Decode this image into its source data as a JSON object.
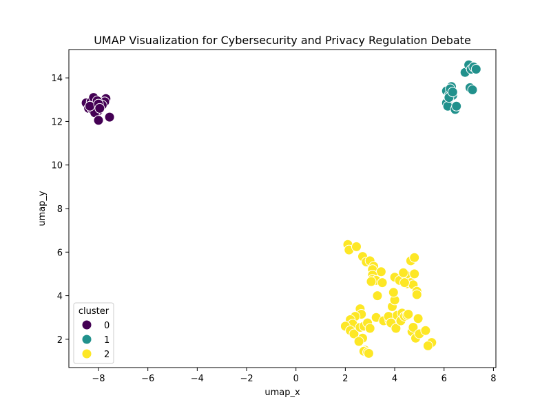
{
  "chart_data": {
    "type": "scatter",
    "title": "UMAP Visualization for Cybersecurity and Privacy Regulation Debate",
    "xlabel": "umap_x",
    "ylabel": "umap_y",
    "xlim": [
      -9.2,
      8.1
    ],
    "ylim": [
      0.7,
      15.3
    ],
    "xticks": [
      -8,
      -6,
      -4,
      -2,
      0,
      2,
      4,
      6,
      8
    ],
    "yticks": [
      2,
      4,
      6,
      8,
      10,
      12,
      14
    ],
    "grid": false,
    "legend": {
      "title": "cluster",
      "placement": "bottom-left"
    },
    "series": [
      {
        "name": "0",
        "color": "#440154",
        "points": [
          [
            -8.5,
            12.85
          ],
          [
            -8.4,
            12.6
          ],
          [
            -8.3,
            12.9
          ],
          [
            -8.2,
            13.1
          ],
          [
            -8.25,
            12.55
          ],
          [
            -8.1,
            12.7
          ],
          [
            -8.0,
            12.5
          ],
          [
            -8.15,
            12.4
          ],
          [
            -7.9,
            12.8
          ],
          [
            -7.7,
            13.05
          ],
          [
            -7.75,
            12.9
          ],
          [
            -7.85,
            12.75
          ],
          [
            -8.05,
            12.95
          ],
          [
            -8.0,
            12.05
          ],
          [
            -7.55,
            12.2
          ],
          [
            -8.35,
            12.7
          ],
          [
            -8.0,
            12.8
          ],
          [
            -7.95,
            12.6
          ]
        ]
      },
      {
        "name": "1",
        "color": "#21918c",
        "points": [
          [
            6.1,
            13.4
          ],
          [
            6.15,
            12.95
          ],
          [
            6.2,
            13.2
          ],
          [
            6.3,
            13.6
          ],
          [
            6.25,
            13.5
          ],
          [
            6.35,
            13.2
          ],
          [
            6.1,
            12.85
          ],
          [
            6.15,
            12.7
          ],
          [
            6.45,
            12.55
          ],
          [
            6.5,
            12.7
          ],
          [
            6.85,
            14.25
          ],
          [
            7.0,
            14.6
          ],
          [
            7.1,
            14.4
          ],
          [
            7.2,
            14.5
          ],
          [
            7.3,
            14.4
          ],
          [
            7.05,
            13.55
          ],
          [
            7.15,
            13.45
          ],
          [
            6.2,
            13.1
          ],
          [
            6.35,
            13.35
          ]
        ]
      },
      {
        "name": "2",
        "color": "#fde725",
        "points": [
          [
            2.1,
            6.35
          ],
          [
            2.15,
            6.1
          ],
          [
            2.45,
            6.25
          ],
          [
            2.7,
            5.8
          ],
          [
            2.85,
            5.55
          ],
          [
            3.0,
            5.6
          ],
          [
            3.15,
            5.35
          ],
          [
            3.1,
            5.2
          ],
          [
            3.45,
            5.1
          ],
          [
            3.1,
            4.95
          ],
          [
            3.1,
            4.75
          ],
          [
            3.25,
            4.7
          ],
          [
            3.5,
            4.6
          ],
          [
            3.05,
            4.65
          ],
          [
            3.3,
            4.0
          ],
          [
            2.6,
            3.4
          ],
          [
            2.65,
            3.15
          ],
          [
            2.4,
            3.05
          ],
          [
            2.2,
            2.9
          ],
          [
            2.3,
            2.7
          ],
          [
            2.0,
            2.6
          ],
          [
            2.2,
            2.4
          ],
          [
            2.35,
            2.25
          ],
          [
            2.6,
            2.55
          ],
          [
            2.75,
            2.6
          ],
          [
            2.9,
            2.75
          ],
          [
            3.0,
            2.5
          ],
          [
            3.25,
            3.0
          ],
          [
            2.7,
            2.05
          ],
          [
            2.55,
            1.9
          ],
          [
            2.8,
            1.5
          ],
          [
            2.75,
            1.45
          ],
          [
            2.9,
            1.4
          ],
          [
            2.95,
            1.35
          ],
          [
            3.55,
            2.85
          ],
          [
            3.8,
            2.85
          ],
          [
            3.75,
            3.05
          ],
          [
            3.85,
            2.75
          ],
          [
            3.9,
            3.5
          ],
          [
            4.0,
            3.8
          ],
          [
            4.1,
            3.1
          ],
          [
            4.05,
            2.5
          ],
          [
            4.25,
            2.85
          ],
          [
            4.3,
            3.2
          ],
          [
            4.4,
            3.05
          ],
          [
            4.5,
            3.1
          ],
          [
            4.55,
            3.15
          ],
          [
            3.95,
            4.15
          ],
          [
            4.0,
            4.85
          ],
          [
            4.2,
            4.7
          ],
          [
            4.45,
            4.95
          ],
          [
            4.5,
            4.55
          ],
          [
            4.65,
            4.6
          ],
          [
            4.75,
            4.5
          ],
          [
            4.8,
            5.0
          ],
          [
            4.65,
            5.6
          ],
          [
            4.8,
            5.75
          ],
          [
            4.9,
            4.2
          ],
          [
            4.9,
            4.05
          ],
          [
            4.7,
            2.35
          ],
          [
            4.85,
            2.05
          ],
          [
            4.95,
            2.95
          ],
          [
            4.75,
            2.55
          ],
          [
            5.0,
            2.25
          ],
          [
            5.25,
            2.4
          ],
          [
            5.4,
            1.75
          ],
          [
            5.5,
            1.85
          ],
          [
            5.35,
            1.7
          ],
          [
            4.4,
            4.6
          ],
          [
            4.35,
            5.05
          ]
        ]
      }
    ]
  }
}
